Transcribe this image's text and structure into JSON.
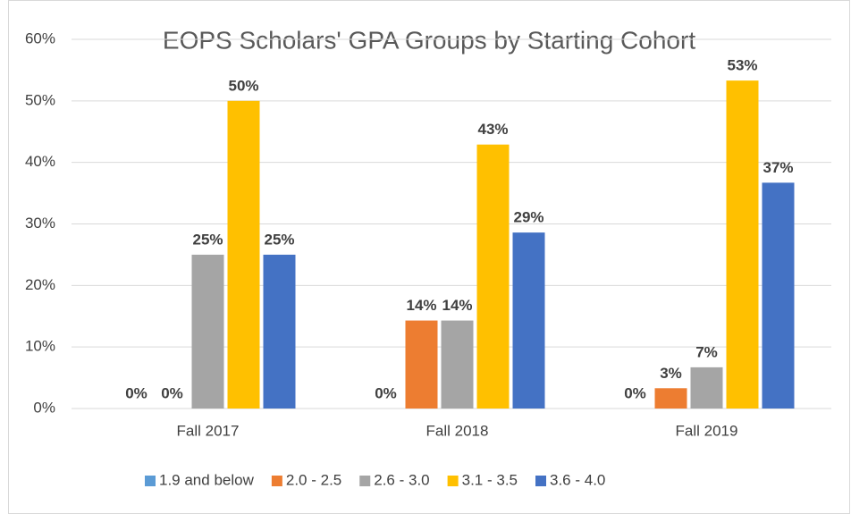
{
  "chart_data": {
    "type": "bar",
    "title": "EOPS Scholars' GPA Groups by Starting Cohort",
    "categories": [
      "Fall 2017",
      "Fall 2018",
      "Fall 2019"
    ],
    "series": [
      {
        "name": "1.9 and below",
        "color": "#5b9bd5",
        "values": [
          0,
          0,
          0
        ],
        "value_labels": [
          "0%",
          "0%",
          "0%"
        ]
      },
      {
        "name": "2.0 - 2.5",
        "color": "#ed7d31",
        "values": [
          0,
          14.3,
          3.3
        ],
        "value_labels": [
          "0%",
          "14%",
          "3%"
        ]
      },
      {
        "name": "2.6 - 3.0",
        "color": "#a5a5a5",
        "values": [
          25,
          14.3,
          6.7
        ],
        "value_labels": [
          "25%",
          "14%",
          "7%"
        ]
      },
      {
        "name": "3.1 - 3.5",
        "color": "#ffc000",
        "values": [
          50,
          42.9,
          53.3
        ],
        "value_labels": [
          "50%",
          "43%",
          "53%"
        ]
      },
      {
        "name": "3.6 - 4.0",
        "color": "#4472c4",
        "values": [
          25,
          28.6,
          36.7
        ],
        "value_labels": [
          "25%",
          "29%",
          "37%"
        ]
      }
    ],
    "ylim": [
      0,
      60
    ],
    "yticks": [
      {
        "value": 0,
        "label": "0%"
      },
      {
        "value": 10,
        "label": "10%"
      },
      {
        "value": 20,
        "label": "20%"
      },
      {
        "value": 30,
        "label": "30%"
      },
      {
        "value": 40,
        "label": "40%"
      },
      {
        "value": 50,
        "label": "50%"
      },
      {
        "value": 60,
        "label": "60%"
      }
    ],
    "grid": true,
    "legend": "bottom"
  }
}
